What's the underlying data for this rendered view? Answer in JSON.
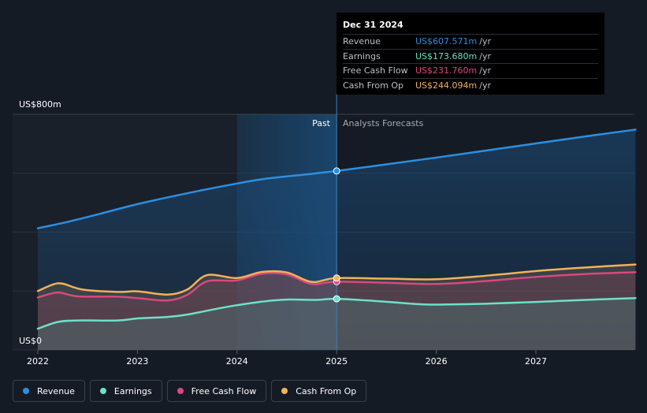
{
  "chart_data": {
    "type": "area",
    "y_axis": {
      "top_label": "US$800m",
      "bottom_label": "US$0",
      "ylim": [
        0,
        800
      ]
    },
    "x_ticks": [
      "2022",
      "2023",
      "2024",
      "2025",
      "2026",
      "2027"
    ],
    "divider": {
      "past_label": "Past",
      "forecast_label": "Analysts Forecasts",
      "x": 2025.0
    },
    "series": [
      {
        "name": "Revenue",
        "color": "#2c8fe0",
        "points": [
          [
            2022.0,
            413
          ],
          [
            2022.3,
            435
          ],
          [
            2022.6,
            460
          ],
          [
            2023.0,
            495
          ],
          [
            2023.5,
            532
          ],
          [
            2024.0,
            565
          ],
          [
            2024.3,
            582
          ],
          [
            2024.7,
            596
          ],
          [
            2025.0,
            607.571
          ],
          [
            2025.5,
            630
          ],
          [
            2026.0,
            653
          ],
          [
            2026.5,
            677
          ],
          [
            2027.0,
            701
          ],
          [
            2027.5,
            725
          ],
          [
            2028.0,
            748
          ]
        ]
      },
      {
        "name": "Earnings",
        "color": "#6ee0c8",
        "points": [
          [
            2022.0,
            72
          ],
          [
            2022.2,
            95
          ],
          [
            2022.4,
            100
          ],
          [
            2022.8,
            100
          ],
          [
            2023.0,
            107
          ],
          [
            2023.3,
            112
          ],
          [
            2023.5,
            120
          ],
          [
            2023.8,
            140
          ],
          [
            2024.0,
            152
          ],
          [
            2024.3,
            166
          ],
          [
            2024.5,
            171
          ],
          [
            2024.8,
            170
          ],
          [
            2025.0,
            173.68
          ],
          [
            2025.4,
            166
          ],
          [
            2025.8,
            156
          ],
          [
            2026.0,
            154
          ],
          [
            2026.5,
            157
          ],
          [
            2027.0,
            163
          ],
          [
            2027.5,
            170
          ],
          [
            2028.0,
            176
          ]
        ]
      },
      {
        "name": "Free Cash Flow",
        "color": "#d9487e",
        "points": [
          [
            2022.0,
            178
          ],
          [
            2022.2,
            195
          ],
          [
            2022.4,
            182
          ],
          [
            2022.8,
            181
          ],
          [
            2023.0,
            176
          ],
          [
            2023.3,
            168
          ],
          [
            2023.5,
            187
          ],
          [
            2023.7,
            233
          ],
          [
            2024.0,
            236
          ],
          [
            2024.25,
            259
          ],
          [
            2024.5,
            256
          ],
          [
            2024.75,
            224
          ],
          [
            2025.0,
            231.76
          ],
          [
            2025.5,
            228
          ],
          [
            2026.0,
            224
          ],
          [
            2026.5,
            234
          ],
          [
            2027.0,
            248
          ],
          [
            2027.5,
            258
          ],
          [
            2028.0,
            264
          ]
        ]
      },
      {
        "name": "Cash From Op",
        "color": "#f0b25c",
        "points": [
          [
            2022.0,
            200
          ],
          [
            2022.15,
            222
          ],
          [
            2022.25,
            225
          ],
          [
            2022.45,
            205
          ],
          [
            2022.8,
            197
          ],
          [
            2023.0,
            199
          ],
          [
            2023.3,
            188
          ],
          [
            2023.5,
            205
          ],
          [
            2023.7,
            254
          ],
          [
            2024.0,
            244
          ],
          [
            2024.25,
            265
          ],
          [
            2024.5,
            263
          ],
          [
            2024.75,
            231
          ],
          [
            2025.0,
            244.094
          ],
          [
            2025.5,
            242
          ],
          [
            2026.0,
            240
          ],
          [
            2026.5,
            252
          ],
          [
            2027.0,
            268
          ],
          [
            2027.5,
            280
          ],
          [
            2028.0,
            290
          ]
        ]
      }
    ],
    "tooltip": {
      "date": "Dec 31 2024",
      "rows": [
        {
          "name": "Revenue",
          "value": "US$607.571m",
          "unit": "/yr",
          "color": "#2c8fe0"
        },
        {
          "name": "Earnings",
          "value": "US$173.680m",
          "unit": "/yr",
          "color": "#6ee0c8"
        },
        {
          "name": "Free Cash Flow",
          "value": "US$231.760m",
          "unit": "/yr",
          "color": "#d9487e"
        },
        {
          "name": "Cash From Op",
          "value": "US$244.094m",
          "unit": "/yr",
          "color": "#f0b25c"
        }
      ]
    },
    "legend": [
      {
        "name": "Revenue",
        "color": "#2c8fe0"
      },
      {
        "name": "Earnings",
        "color": "#6ee0c8"
      },
      {
        "name": "Free Cash Flow",
        "color": "#d9487e"
      },
      {
        "name": "Cash From Op",
        "color": "#f0b25c"
      }
    ]
  }
}
